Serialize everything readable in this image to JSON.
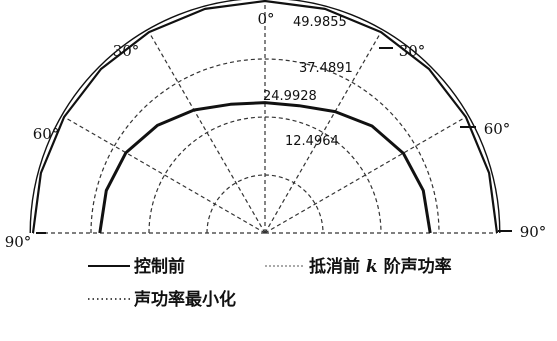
{
  "chart_data": {
    "type": "polar",
    "angle_ticks_left": [
      "0°",
      "30°",
      "60°",
      "90°"
    ],
    "angle_ticks_right": [
      "30°",
      "60°",
      "90°"
    ],
    "angle_tick_values_deg": [
      -90,
      -60,
      -30,
      0,
      30,
      60,
      90
    ],
    "radial_ticks": [
      "12.4964",
      "24.9928",
      "37.4891",
      "49.9855"
    ],
    "radial_tick_values": [
      12.4964,
      24.9928,
      37.4891,
      49.9855
    ],
    "rmax": 49.9855,
    "series": [
      {
        "style": "solid",
        "angles": [
          -90,
          -75,
          -60,
          -45,
          -30,
          -15,
          0,
          15,
          30,
          45,
          60,
          75,
          90
        ],
        "values": [
          49.9855,
          49.9855,
          49.9855,
          49.9855,
          49.9855,
          49.9855,
          49.9855,
          49.9855,
          49.9855,
          49.9855,
          49.9855,
          49.9855,
          49.9855
        ]
      },
      {
        "style": "solid",
        "angles": [
          -90,
          -75,
          -60,
          -45,
          -30,
          -15,
          0,
          15,
          30,
          45,
          60,
          75,
          90
        ],
        "values": [
          35.6,
          35.4,
          34.6,
          32.8,
          30.6,
          28.7,
          28.1,
          28.4,
          30.2,
          32.6,
          34.4,
          35.3,
          35.6
        ]
      }
    ],
    "legend": [
      {
        "style": "solid",
        "label_before_k": "控制前",
        "label_k": "",
        "label_after_k": ""
      },
      {
        "style": "dashed",
        "label_before_k": "抵消前 ",
        "label_k": "k",
        "label_after_k": " 阶声功率"
      },
      {
        "style": "dotted",
        "label_before_k": "声功率最小化",
        "label_k": "",
        "label_after_k": ""
      }
    ]
  }
}
